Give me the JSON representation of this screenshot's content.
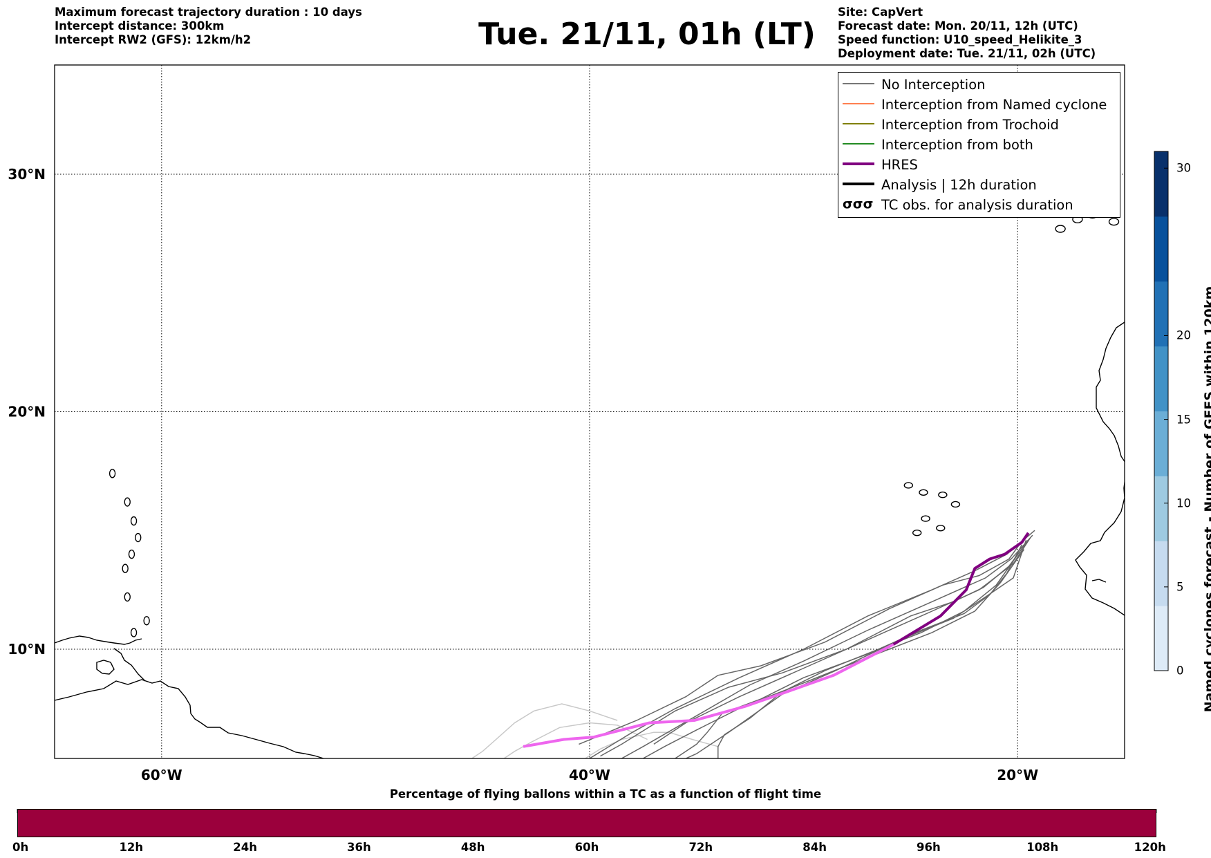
{
  "header": {
    "title": "Tue. 21/11, 01h (LT)",
    "left_info": [
      "Maximum forecast trajectory duration : 10 days",
      "Intercept distance: 300km",
      "Intercept RW2 (GFS):  12km/h2"
    ],
    "right_info": [
      "Site: CapVert",
      "Forecast date: Mon. 20/11, 12h (UTC)",
      "Speed function: U10_speed_Helikite_3",
      "Deployment date: Tue. 21/11, 02h (UTC)"
    ]
  },
  "legend": {
    "items": [
      {
        "label": "No Interception",
        "color": "#777777",
        "symbol": "thin-line"
      },
      {
        "label": "Interception from Named cyclone",
        "color": "#ff7f50",
        "symbol": "thin-line"
      },
      {
        "label": "Interception from Trochoid",
        "color": "#808000",
        "symbol": "thin-line"
      },
      {
        "label": "Interception from both",
        "color": "#228b22",
        "symbol": "thin-line"
      },
      {
        "label": "HRES",
        "color": "#800080",
        "symbol": "thick-line"
      },
      {
        "label": "Analysis | 12h duration",
        "color": "#000000",
        "symbol": "thick-line"
      },
      {
        "label": "TC obs. for analysis duration",
        "color": "#000000",
        "symbol": "tc-icons",
        "icon": "σσσ"
      }
    ]
  },
  "chart_data": [
    {
      "type": "line",
      "title": "Tue. 21/11, 01h (LT)",
      "projection": "cylindrical",
      "xlim": [
        -65,
        -15
      ],
      "ylim": [
        5.4,
        34.6
      ],
      "x_ticks": [
        -60,
        -40,
        -20
      ],
      "x_tick_labels": [
        "60°W",
        "40°W",
        "20°W"
      ],
      "y_ticks": [
        10,
        20,
        30
      ],
      "y_tick_labels": [
        "10°N",
        "20°N",
        "30°N"
      ],
      "grid": true,
      "legend_position": "top-right",
      "hres": {
        "name": "HRES",
        "color": "#800080",
        "early_color": "#ee66ee",
        "points": [
          [
            -43.1,
            5.9
          ],
          [
            -41.2,
            6.2
          ],
          [
            -39.8,
            6.3
          ],
          [
            -37.2,
            6.9
          ],
          [
            -35.1,
            7.0
          ],
          [
            -32.7,
            7.6
          ],
          [
            -30.8,
            8.2
          ],
          [
            -28.6,
            8.9
          ],
          [
            -25.8,
            10.2
          ],
          [
            -23.6,
            11.4
          ],
          [
            -22.4,
            12.5
          ],
          [
            -22.0,
            13.4
          ],
          [
            -21.3,
            13.8
          ],
          [
            -20.6,
            14.0
          ],
          [
            -19.8,
            14.5
          ],
          [
            -19.5,
            14.9
          ]
        ]
      },
      "ensemble": {
        "color": "#666666",
        "light_color": "#c8c8c8",
        "members": [
          [
            [
              -19.2,
              15.0
            ],
            [
              -20.5,
              14.0
            ],
            [
              -22.0,
              13.3
            ],
            [
              -24.0,
              12.5
            ],
            [
              -27.0,
              11.4
            ],
            [
              -30.0,
              10.0
            ],
            [
              -33.0,
              8.8
            ],
            [
              -36.0,
              7.5
            ],
            [
              -38.0,
              6.5
            ],
            [
              -40.0,
              5.4
            ]
          ],
          [
            [
              -19.3,
              14.8
            ],
            [
              -20.3,
              13.8
            ],
            [
              -21.5,
              13.0
            ],
            [
              -24.0,
              12.0
            ],
            [
              -27.0,
              10.8
            ],
            [
              -30.0,
              9.5
            ],
            [
              -32.5,
              8.5
            ],
            [
              -35.0,
              7.2
            ],
            [
              -37.5,
              5.9
            ],
            [
              -38.5,
              5.4
            ]
          ],
          [
            [
              -19.4,
              14.7
            ],
            [
              -20.2,
              13.6
            ],
            [
              -21.8,
              12.5
            ],
            [
              -24.0,
              11.6
            ],
            [
              -27.0,
              10.4
            ],
            [
              -30.0,
              9.2
            ],
            [
              -33.0,
              8.0
            ],
            [
              -35.5,
              6.9
            ],
            [
              -37.0,
              6.0
            ]
          ],
          [
            [
              -19.6,
              14.8
            ],
            [
              -20.4,
              13.8
            ],
            [
              -21.8,
              13.1
            ],
            [
              -23.5,
              12.7
            ],
            [
              -26.0,
              11.7
            ],
            [
              -29.0,
              10.3
            ],
            [
              -32.0,
              9.3
            ],
            [
              -34.0,
              8.9
            ],
            [
              -35.5,
              8.0
            ],
            [
              -37.8,
              7.0
            ],
            [
              -40.5,
              6.0
            ]
          ],
          [
            [
              -19.5,
              14.6
            ],
            [
              -20.4,
              13.5
            ],
            [
              -21.6,
              12.6
            ],
            [
              -23.0,
              12.0
            ],
            [
              -25.0,
              11.4
            ],
            [
              -28.0,
              10.0
            ],
            [
              -31.0,
              9.0
            ],
            [
              -33.5,
              8.4
            ],
            [
              -36.0,
              7.4
            ],
            [
              -38.5,
              6.0
            ],
            [
              -39.5,
              5.5
            ]
          ],
          [
            [
              -19.8,
              14.4
            ],
            [
              -20.5,
              13.2
            ],
            [
              -21.3,
              12.3
            ],
            [
              -22.5,
              11.5
            ],
            [
              -24.5,
              10.8
            ],
            [
              -27.0,
              9.8
            ],
            [
              -30.0,
              8.8
            ],
            [
              -32.0,
              7.9
            ],
            [
              -33.8,
              7.3
            ],
            [
              -34.5,
              6.5
            ],
            [
              -35.0,
              6.0
            ],
            [
              -36.0,
              5.4
            ]
          ],
          [
            [
              -19.6,
              14.6
            ],
            [
              -20.2,
              13.0
            ],
            [
              -21.5,
              12.2
            ],
            [
              -23.0,
              11.3
            ],
            [
              -25.5,
              10.4
            ],
            [
              -28.5,
              9.1
            ],
            [
              -31.0,
              8.1
            ],
            [
              -33.5,
              6.5
            ],
            [
              -35.0,
              5.6
            ],
            [
              -35.5,
              5.4
            ]
          ],
          [
            [
              -19.9,
              14.1
            ],
            [
              -21.0,
              12.7
            ],
            [
              -22.5,
              11.6
            ],
            [
              -24.5,
              10.7
            ],
            [
              -26.5,
              10.0
            ],
            [
              -29.0,
              9.1
            ],
            [
              -31.0,
              8.2
            ],
            [
              -32.5,
              7.1
            ],
            [
              -33.7,
              6.4
            ],
            [
              -34.0,
              5.9
            ],
            [
              -34.0,
              5.4
            ]
          ],
          [
            [
              -19.7,
              14.2
            ],
            [
              -20.8,
              12.8
            ],
            [
              -22.0,
              11.6
            ],
            [
              -24.0,
              10.7
            ],
            [
              -26.0,
              10.0
            ],
            [
              -28.0,
              9.3
            ],
            [
              -30.5,
              8.4
            ],
            [
              -32.8,
              7.6
            ],
            [
              -35.0,
              6.6
            ],
            [
              -36.5,
              5.9
            ],
            [
              -37.5,
              5.4
            ]
          ]
        ],
        "light_members": [
          [
            [
              -38.7,
              7.0
            ],
            [
              -40.0,
              7.4
            ],
            [
              -41.3,
              7.7
            ],
            [
              -42.6,
              7.4
            ],
            [
              -43.5,
              6.9
            ],
            [
              -44.5,
              6.1
            ],
            [
              -45.0,
              5.7
            ],
            [
              -45.5,
              5.4
            ]
          ],
          [
            [
              -37.3,
              6.2
            ],
            [
              -38.7,
              6.8
            ],
            [
              -40.0,
              6.9
            ],
            [
              -41.4,
              6.7
            ],
            [
              -42.7,
              6.1
            ],
            [
              -43.5,
              5.7
            ],
            [
              -44.0,
              5.4
            ]
          ],
          [
            [
              -34.0,
              5.9
            ],
            [
              -35.2,
              6.2
            ],
            [
              -36.3,
              6.5
            ],
            [
              -37.0,
              6.5
            ],
            [
              -38.5,
              6.2
            ],
            [
              -39.5,
              5.8
            ],
            [
              -40.2,
              5.4
            ]
          ]
        ]
      },
      "islands": {
        "color": "#000000",
        "cape_verde": [
          [
            -24.4,
            16.6
          ],
          [
            -23.5,
            16.5
          ],
          [
            -25.1,
            16.9
          ],
          [
            -22.9,
            16.1
          ],
          [
            -23.6,
            15.1
          ],
          [
            -24.7,
            14.9
          ],
          [
            -24.3,
            15.5
          ]
        ],
        "canaries": [
          [
            -16.5,
            28.3
          ],
          [
            -15.5,
            28.0
          ],
          [
            -17.8,
            28.7
          ],
          [
            -13.8,
            28.6
          ],
          [
            -17.2,
            28.1
          ],
          [
            -18.0,
            27.7
          ]
        ],
        "lesser_antilles": [
          [
            -62.3,
            17.4
          ],
          [
            -61.6,
            16.2
          ],
          [
            -61.3,
            15.4
          ],
          [
            -61.1,
            14.7
          ],
          [
            -61.4,
            14.0
          ],
          [
            -61.7,
            13.4
          ],
          [
            -61.6,
            12.2
          ],
          [
            -61.3,
            10.7
          ],
          [
            -60.7,
            11.2
          ]
        ]
      }
    },
    {
      "type": "heatmap",
      "title": "Percentage of flying ballons within a TC as a function of flight time",
      "tick_labels": [
        "0h",
        "12h",
        "24h",
        "36h",
        "48h",
        "60h",
        "72h",
        "84h",
        "96h",
        "108h",
        "120h"
      ],
      "color": "#9b003c"
    },
    {
      "type": "heatmap",
      "title": "Named cyclones forecast - Number of GEFS within 120km",
      "tick_values": [
        0,
        5,
        10,
        15,
        20,
        30
      ],
      "range": [
        0,
        31
      ],
      "colors": [
        "#deebf7",
        "#c6dbef",
        "#9ecae1",
        "#6baed6",
        "#4292c6",
        "#2171b5",
        "#08519c",
        "#08306b"
      ]
    }
  ]
}
